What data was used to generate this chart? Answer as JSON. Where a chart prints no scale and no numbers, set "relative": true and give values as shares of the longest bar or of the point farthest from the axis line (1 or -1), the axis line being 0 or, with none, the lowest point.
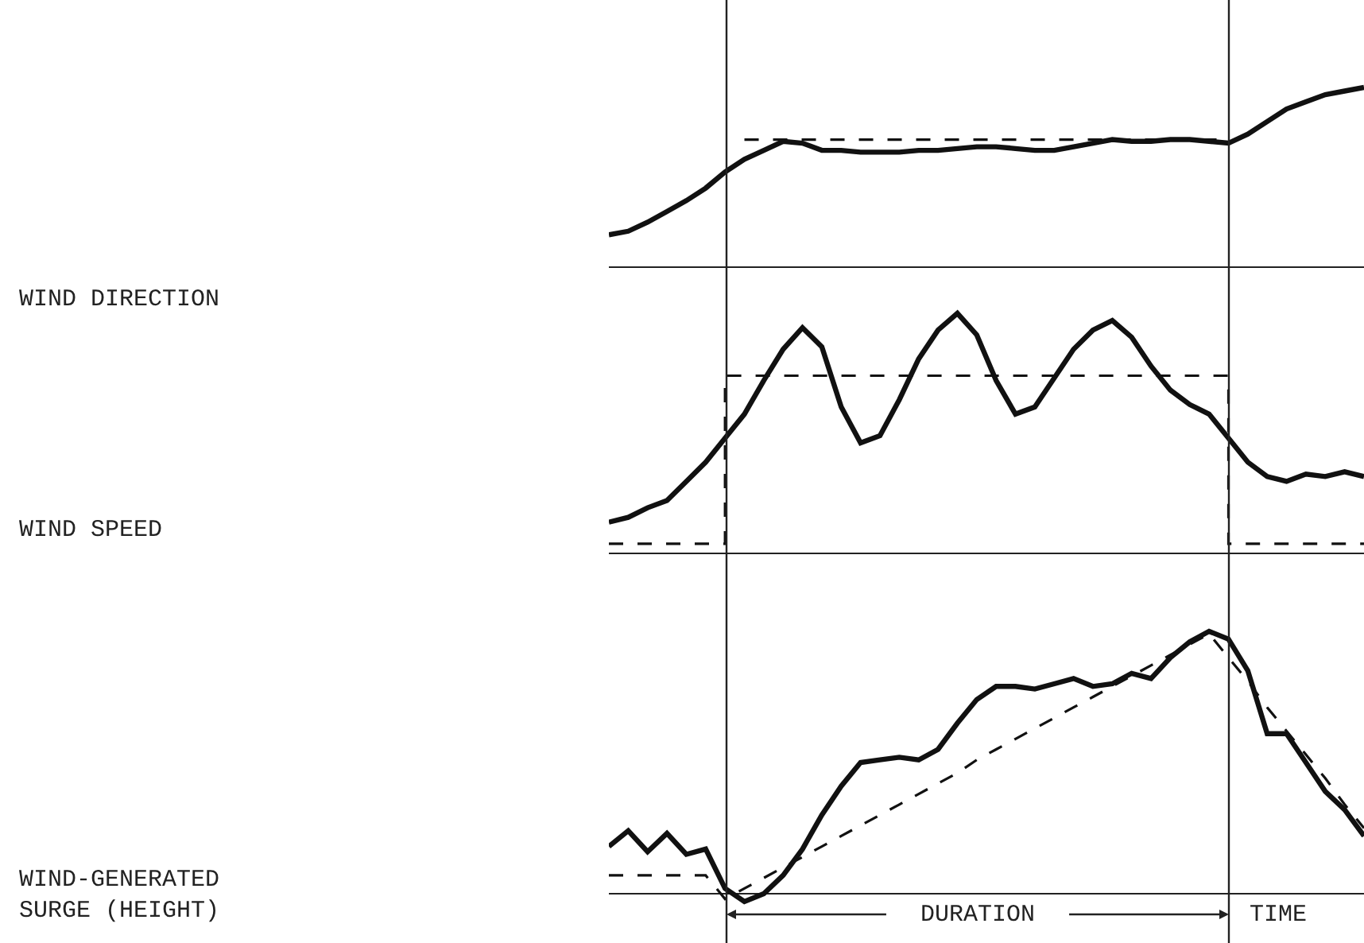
{
  "chart_data": [
    {
      "type": "line",
      "ylabel": "WIND DIRECTION",
      "relative": true,
      "legend": false,
      "marker": "none",
      "categories": [
        null,
        null,
        null,
        null,
        null,
        null,
        null,
        null,
        null,
        null,
        null,
        null,
        null,
        null,
        null,
        null,
        null,
        null,
        null,
        null,
        null,
        null,
        null,
        null,
        null,
        null,
        null,
        null,
        null,
        null,
        null,
        null,
        null,
        null,
        null,
        null,
        null,
        null,
        null,
        null
      ],
      "series": [
        {
          "color": "#111111",
          "line_style": "solid",
          "values": [
            0.18,
            0.2,
            0.25,
            0.31,
            0.37,
            0.44,
            0.53,
            0.6,
            0.65,
            0.7,
            0.69,
            0.65,
            0.65,
            0.64,
            0.64,
            0.64,
            0.65,
            0.65,
            0.66,
            0.67,
            0.67,
            0.66,
            0.65,
            0.65,
            0.67,
            0.69,
            0.71,
            0.7,
            0.7,
            0.71,
            0.71,
            0.7,
            0.69,
            0.74,
            0.81,
            0.88,
            0.92,
            0.96,
            0.98,
            1
          ]
        },
        {
          "color": "#111111",
          "line_style": "dashed",
          "values": [
            null,
            null,
            null,
            null,
            null,
            null,
            null,
            0.71,
            0.71,
            0.71,
            0.71,
            0.71,
            0.71,
            0.71,
            0.71,
            0.71,
            0.71,
            0.71,
            0.71,
            0.71,
            0.71,
            0.71,
            0.71,
            0.71,
            0.71,
            0.71,
            0.71,
            0.71,
            0.71,
            0.71,
            0.71,
            0.71,
            0.71,
            null,
            null,
            null,
            null,
            null,
            null,
            null
          ]
        }
      ]
    },
    {
      "type": "line",
      "ylabel": "WIND SPEED",
      "relative": true,
      "legend": false,
      "marker": "none",
      "categories": [
        null,
        null,
        null,
        null,
        null,
        null,
        null,
        null,
        null,
        null,
        null,
        null,
        null,
        null,
        null,
        null,
        null,
        null,
        null,
        null,
        null,
        null,
        null,
        null,
        null,
        null,
        null,
        null,
        null,
        null,
        null,
        null,
        null,
        null,
        null,
        null,
        null,
        null,
        null,
        null
      ],
      "series": [
        {
          "color": "#111111",
          "line_style": "solid",
          "values": [
            0.13,
            0.15,
            0.19,
            0.22,
            0.3,
            0.38,
            0.48,
            0.58,
            0.72,
            0.85,
            0.94,
            0.86,
            0.61,
            0.46,
            0.49,
            0.64,
            0.81,
            0.93,
            1,
            0.91,
            0.72,
            0.58,
            0.61,
            0.73,
            0.85,
            0.93,
            0.97,
            0.9,
            0.78,
            0.68,
            0.62,
            0.58,
            0.48,
            0.38,
            0.32,
            0.3,
            0.33,
            0.32,
            0.34,
            0.32
          ]
        },
        {
          "type": "step",
          "color": "#111111",
          "line_style": "dashed",
          "values": [
            0.04,
            0.04,
            0.04,
            0.04,
            0.04,
            0.04,
            0.74,
            0.74,
            0.74,
            0.74,
            0.74,
            0.74,
            0.74,
            0.74,
            0.74,
            0.74,
            0.74,
            0.74,
            0.74,
            0.74,
            0.74,
            0.74,
            0.74,
            0.74,
            0.74,
            0.74,
            0.74,
            0.74,
            0.74,
            0.74,
            0.74,
            0.74,
            0.04,
            0.04,
            0.04,
            0.04,
            0.04,
            0.04,
            0.04,
            0.04
          ]
        }
      ]
    },
    {
      "type": "line",
      "ylabel": "WIND-GENERATED\nSURGE (HEIGHT)",
      "xlabel": "TIME",
      "annotations": [
        "DURATION"
      ],
      "relative": true,
      "legend": false,
      "marker": "none",
      "categories": [
        null,
        null,
        null,
        null,
        null,
        null,
        null,
        null,
        null,
        null,
        null,
        null,
        null,
        null,
        null,
        null,
        null,
        null,
        null,
        null,
        null,
        null,
        null,
        null,
        null,
        null,
        null,
        null,
        null,
        null,
        null,
        null,
        null,
        null,
        null,
        null,
        null,
        null,
        null,
        null
      ],
      "series": [
        {
          "color": "#111111",
          "line_style": "solid",
          "values": [
            0.18,
            0.24,
            0.16,
            0.23,
            0.15,
            0.17,
            0.02,
            -0.03,
            0,
            0.07,
            0.17,
            0.3,
            0.41,
            0.5,
            0.51,
            0.52,
            0.51,
            0.55,
            0.65,
            0.74,
            0.79,
            0.79,
            0.78,
            0.8,
            0.82,
            0.79,
            0.8,
            0.84,
            0.82,
            0.9,
            0.96,
            1,
            0.97,
            0.85,
            0.61,
            0.61,
            0.5,
            0.39,
            0.32,
            0.22
          ]
        },
        {
          "color": "#111111",
          "line_style": "dashed",
          "values": [
            0.07,
            0.07,
            0.07,
            0.07,
            0.07,
            0.07,
            -0.02,
            0.02,
            0.06,
            0.1,
            0.14,
            0.18,
            0.22,
            0.26,
            0.3,
            0.34,
            0.38,
            0.42,
            0.46,
            0.51,
            0.55,
            0.59,
            0.63,
            0.67,
            0.71,
            0.75,
            0.79,
            0.83,
            0.87,
            0.91,
            0.95,
            0.99,
            0.9,
            0.81,
            0.71,
            0.62,
            0.53,
            0.44,
            0.34,
            0.25
          ]
        }
      ]
    }
  ]
}
